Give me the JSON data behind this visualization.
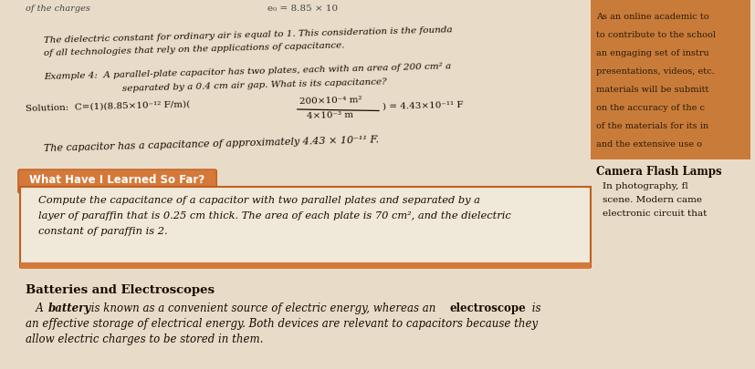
{
  "page_bg": "#e8dcc8",
  "right_panel_bg": "#c97c3a",
  "orange_box_bg": "#d4793a",
  "orange_box_border": "#c06020",
  "white_box_bg": "#f0e8d8",
  "top_text_left": "of the charges",
  "top_formula": "e₀ = 8.85 × 10",
  "dielectric_line1": "The dielectric constant for ordinary air is equal to 1. This consideration is the founda",
  "dielectric_line2": "of all technologies that rely on the applications of capacitance.",
  "example_line1": "Example 4:  A parallel-plate capacitor has two plates, each with an area of 200 cm² a",
  "example_line2": "            separated by a 0.4 cm air gap. What is its capacitance?",
  "solution_prefix": "Solution:  C=(1)(8.85×10⁻¹² F/m)(",
  "frac_num": "200×10⁻⁴ m²",
  "frac_den": "4×10⁻³ m",
  "solution_suffix": ") = 4.43×10⁻¹¹ F",
  "capacitor_result": "The capacitor has a capacitance of approximately 4.43 × 10⁻¹¹ F.",
  "orange_header": "What Have I Learned So Far?",
  "orange_box_text1": "Compute the capacitance of a capacitor with two parallel plates and separated by a",
  "orange_box_text2": "layer of paraffin that is 0.25 cm thick. The area of each plate is 70 cm², and the dielectric",
  "orange_box_text3": "constant of paraffin is 2.",
  "right_panel_lines": [
    "As an online academic to",
    "to contribute to the school",
    "an engaging set of instru",
    "presentations, videos, etc.",
    "materials will be submitt",
    "on the accuracy of the c",
    "of the materials for its in",
    "and the extensive use o"
  ],
  "camera_header": "Camera Flash Lamps",
  "camera_lines": [
    "In photography, fl",
    "scene. Modern came",
    "electronic circuit that"
  ],
  "batteries_header": "Batteries and Electroscopes",
  "batteries_line1_pre": "   A ",
  "batteries_line1_bold1": "battery",
  "batteries_line1_mid": " is known as a convenient source of electric energy, whereas an ",
  "batteries_line1_bold2": "electroscope",
  "batteries_line1_post": " is",
  "batteries_line2": "an effective storage of electrical energy. Both devices are relevant to capacitors because they",
  "batteries_line3": "allow electric charges to be stored in them."
}
